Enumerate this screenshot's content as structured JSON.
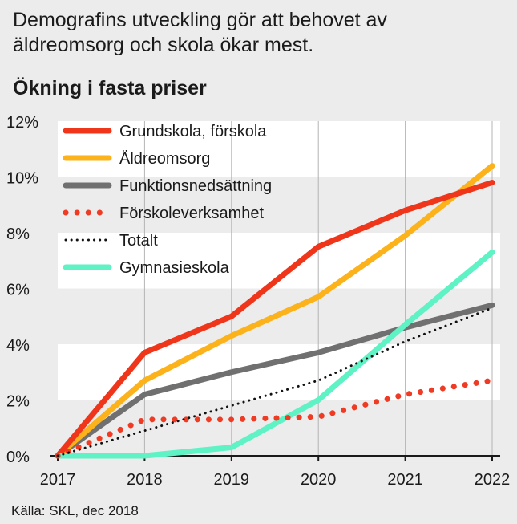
{
  "headline": "Demografins utveckling gör att behovet av äldreomsorg och skola ökar mest.",
  "subtitle": "Ökning i fasta priser",
  "source": "Källa: SKL, dec 2018",
  "chart_data": {
    "type": "line",
    "title": "",
    "xlabel": "",
    "ylabel": "",
    "x": [
      "2017",
      "2018",
      "2019",
      "2020",
      "2021",
      "2022"
    ],
    "ylim": [
      0,
      12
    ],
    "yticks": [
      "0%",
      "2%",
      "4%",
      "6%",
      "8%",
      "10%",
      "12%"
    ],
    "grid": "alternating horizontal bands, vertical lines at each year",
    "legend_position": "top-left",
    "series": [
      {
        "name": "Grundskola, förskola",
        "values": [
          0,
          3.7,
          5.0,
          7.5,
          8.8,
          9.8
        ],
        "color": "#f0361a",
        "style": "solid"
      },
      {
        "name": "Äldreomsorg",
        "values": [
          0,
          2.7,
          4.3,
          5.7,
          7.9,
          10.4
        ],
        "color": "#fcb21a",
        "style": "solid"
      },
      {
        "name": "Funktionsnedsättning",
        "values": [
          0,
          2.2,
          3.0,
          3.7,
          4.6,
          5.4
        ],
        "color": "#707070",
        "style": "solid"
      },
      {
        "name": "Förskoleverksamhet",
        "values": [
          0,
          1.3,
          1.3,
          1.4,
          2.2,
          2.7
        ],
        "color": "#ef3b23",
        "style": "dotted"
      },
      {
        "name": "Totalt",
        "values": [
          0,
          0.9,
          1.8,
          2.7,
          4.1,
          5.3
        ],
        "color": "#111111",
        "style": "dotted-thin"
      },
      {
        "name": "Gymnasieskola",
        "values": [
          0,
          0.0,
          0.3,
          2.0,
          4.7,
          7.3
        ],
        "color": "#5ef2c4",
        "style": "solid"
      }
    ]
  }
}
